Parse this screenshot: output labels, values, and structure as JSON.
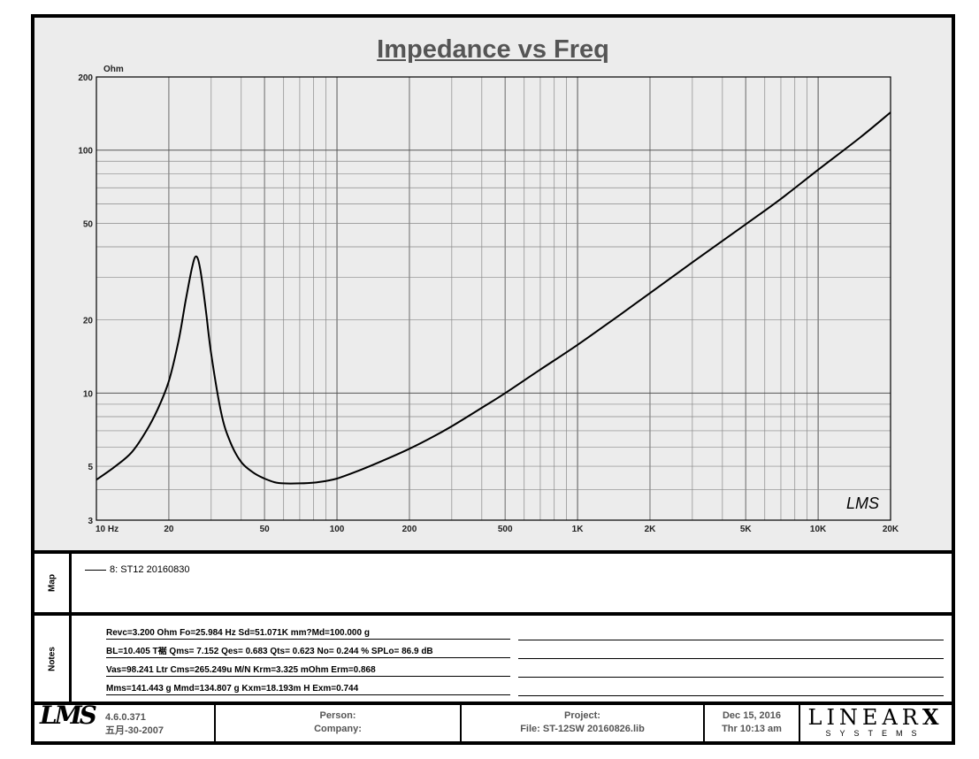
{
  "chart_data": {
    "type": "line",
    "title": "Impedance vs Freq",
    "ylabel": "Ohm",
    "xscale": "log",
    "yscale": "log",
    "xlim": [
      10,
      20000
    ],
    "ylim": [
      3,
      200
    ],
    "grid": true,
    "x_tick_labels": [
      {
        "v": 10,
        "label": "10  Hz"
      },
      {
        "v": 20,
        "label": "20"
      },
      {
        "v": 50,
        "label": "50"
      },
      {
        "v": 100,
        "label": "100"
      },
      {
        "v": 200,
        "label": "200"
      },
      {
        "v": 500,
        "label": "500"
      },
      {
        "v": 1000,
        "label": "1K"
      },
      {
        "v": 2000,
        "label": "2K"
      },
      {
        "v": 5000,
        "label": "5K"
      },
      {
        "v": 10000,
        "label": "10K"
      },
      {
        "v": 20000,
        "label": "20K"
      }
    ],
    "y_tick_labels": [
      {
        "v": 200,
        "label": "200"
      },
      {
        "v": 100,
        "label": "100"
      },
      {
        "v": 50,
        "label": "50"
      },
      {
        "v": 20,
        "label": "20"
      },
      {
        "v": 10,
        "label": "10"
      },
      {
        "v": 5,
        "label": "5"
      },
      {
        "v": 3,
        "label": "3"
      }
    ],
    "series": [
      {
        "name": "8:  ST12  20160830",
        "x": [
          10,
          12,
          14,
          16,
          18,
          20,
          22,
          23.5,
          25,
          25.98,
          27,
          28.5,
          30,
          33,
          36,
          40,
          45,
          50,
          55,
          60,
          70,
          80,
          90,
          100,
          120,
          150,
          200,
          250,
          300,
          400,
          500,
          700,
          1000,
          1500,
          2000,
          3000,
          5000,
          7000,
          10000,
          15000,
          20000
        ],
        "y": [
          4.4,
          5.0,
          5.7,
          6.9,
          8.6,
          11.2,
          16.6,
          24.0,
          33.0,
          36.5,
          32.5,
          22.0,
          14.5,
          8.3,
          6.3,
          5.2,
          4.7,
          4.45,
          4.3,
          4.25,
          4.25,
          4.28,
          4.35,
          4.45,
          4.75,
          5.2,
          5.9,
          6.6,
          7.3,
          8.7,
          10.0,
          12.5,
          15.8,
          21.0,
          25.8,
          34.5,
          49.5,
          63.0,
          83.0,
          113.0,
          143.0
        ]
      }
    ]
  },
  "plot": {
    "unit_label": "Ohm",
    "watermark": "LMS"
  },
  "map": {
    "label": "Map",
    "entry": "8:  ST12  20160830"
  },
  "notes": {
    "label": "Notes",
    "rows": [
      "Revc=3.200 Ohm  Fo=25.984 Hz  Sd=51.071K mm?Md=100.000 g",
      "BL=10.405 T裾  Qms= 7.152  Qes= 0.683  Qts= 0.623  No= 0.244 %  SPLo= 86.9 dB",
      "Vas=98.241 Ltr  Cms=265.249u M/N  Krm=3.325 mOhm  Erm=0.868",
      "Mms=141.443 g  Mmd=134.807 g  Kxm=18.193m H  Exm=0.744"
    ]
  },
  "footer": {
    "logo": "LMS",
    "version": "4.6.0.371",
    "version_date": "五月-30-2007",
    "person": "Person:",
    "company": "Company:",
    "project": "Project:",
    "file": "File: ST-12SW 20160826.lib",
    "date": "Dec 15, 2016",
    "time": "Thr 10:13 am",
    "brand": "LINEAR",
    "brand_mark": "X",
    "brand_sub": "SYSTEMS"
  }
}
